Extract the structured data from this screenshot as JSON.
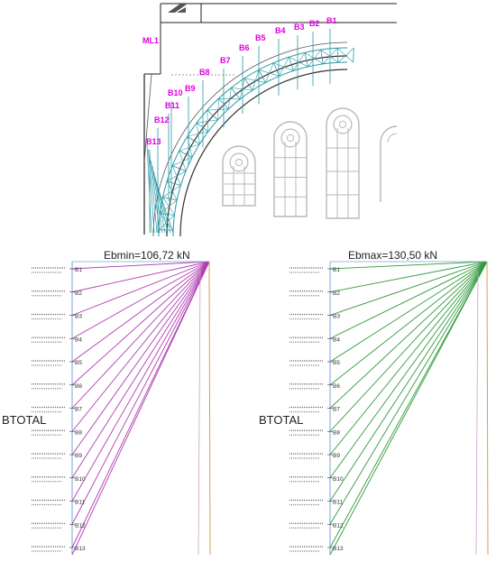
{
  "drawing": {
    "main_label": "ML1",
    "bar_labels": [
      "B1",
      "B2",
      "B3",
      "B4",
      "B5",
      "B6",
      "B7",
      "B8",
      "B9",
      "B10",
      "B11",
      "B12",
      "B13"
    ],
    "label_color": "#e000e0",
    "line_color": "#2a9aa6"
  },
  "panels": [
    {
      "title": "Ebmin=106,72 kN",
      "side_label": "BTOTAL",
      "ray_color": "#b03cb0",
      "total_color": "#d8a050",
      "bars": [
        "B1",
        "B2",
        "B3",
        "B4",
        "B5",
        "B6",
        "B7",
        "B8",
        "B9",
        "B10",
        "B11",
        "B12",
        "B13"
      ]
    },
    {
      "title": "Ebmax=130,50 kN",
      "side_label": "BTOTAL",
      "ray_color": "#2f9a3a",
      "total_color": "#d8a050",
      "bars": [
        "B1",
        "B2",
        "B3",
        "B4",
        "B5",
        "B6",
        "B7",
        "B8",
        "B9",
        "B10",
        "B11",
        "B12",
        "B13"
      ]
    }
  ]
}
